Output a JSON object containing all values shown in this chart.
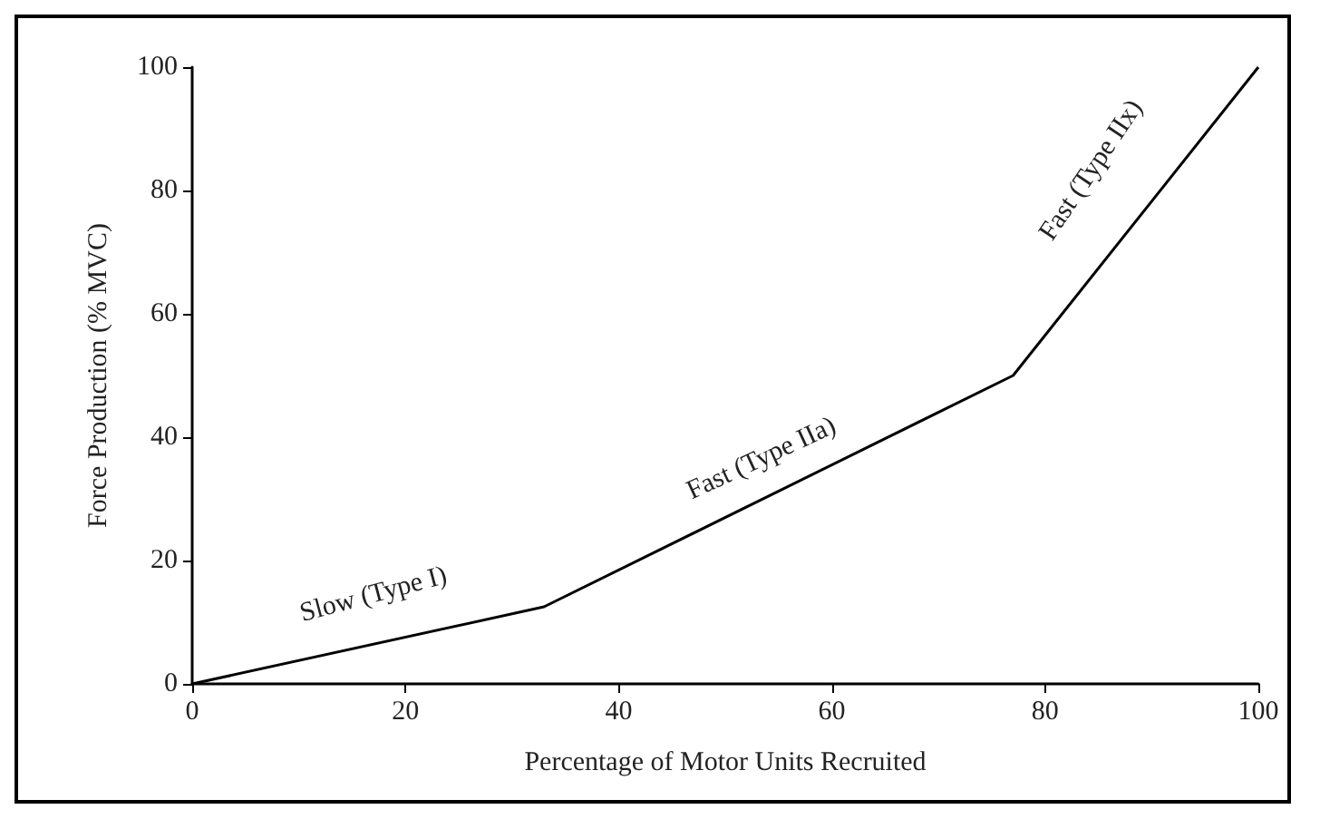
{
  "chart_data": {
    "type": "line",
    "xlabel": "Percentage of Motor Units Recruited",
    "ylabel": "Force Production (% MVC)",
    "x": [
      0,
      33,
      77,
      100
    ],
    "series": [
      {
        "color": "#000000",
        "values": [
          0,
          12.5,
          50,
          100
        ]
      }
    ],
    "xlim": [
      0,
      100
    ],
    "xticks": [
      0,
      20,
      40,
      60,
      80,
      100
    ],
    "ylim": [
      0,
      100
    ],
    "yticks": [
      0,
      20,
      40,
      60,
      80,
      100
    ],
    "grid": false,
    "marker": "none",
    "line_style": "solid",
    "annotations": [
      "Slow (Type I)",
      "Fast (Type IIa)",
      "Fast (Type IIx)"
    ]
  }
}
